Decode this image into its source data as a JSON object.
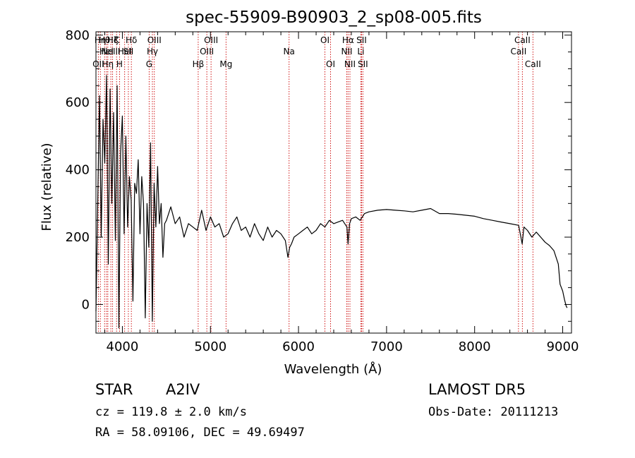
{
  "chart_data": {
    "type": "line",
    "title": "spec-55909-B90903_2_sp08-005.fits",
    "xlabel": "Wavelength (Å)",
    "ylabel": "Flux (relative)",
    "xlim": [
      3700,
      9100
    ],
    "ylim": [
      -85,
      810
    ],
    "xticks": [
      4000,
      5000,
      6000,
      7000,
      8000,
      9000
    ],
    "yticks": [
      0,
      200,
      400,
      600,
      800
    ],
    "grid": false,
    "series": [
      {
        "x": [
          3700,
          3720,
          3740,
          3760,
          3780,
          3800,
          3820,
          3840,
          3860,
          3880,
          3900,
          3920,
          3940,
          3960,
          3980,
          4000,
          4020,
          4040,
          4060,
          4080,
          4100,
          4120,
          4140,
          4160,
          4180,
          4200,
          4220,
          4240,
          4260,
          4280,
          4300,
          4320,
          4340,
          4360,
          4380,
          4400,
          4420,
          4440,
          4460,
          4480,
          4500,
          4550,
          4600,
          4650,
          4700,
          4750,
          4800,
          4850,
          4900,
          4950,
          5000,
          5050,
          5100,
          5150,
          5200,
          5250,
          5300,
          5350,
          5400,
          5450,
          5500,
          5550,
          5600,
          5650,
          5700,
          5750,
          5800,
          5850,
          5880,
          5900,
          5920,
          5950,
          6000,
          6050,
          6100,
          6150,
          6200,
          6250,
          6300,
          6350,
          6400,
          6450,
          6500,
          6550,
          6563,
          6580,
          6600,
          6650,
          6700,
          6750,
          6800,
          6900,
          7000,
          7100,
          7200,
          7300,
          7400,
          7500,
          7600,
          7700,
          7800,
          7900,
          8000,
          8100,
          8200,
          8300,
          8400,
          8500,
          8540,
          8560,
          8600,
          8650,
          8700,
          8750,
          8800,
          8850,
          8900,
          8950,
          8970,
          9000,
          9020,
          9040,
          9050
        ],
        "y": [
          -20,
          300,
          620,
          200,
          550,
          420,
          680,
          120,
          640,
          300,
          570,
          190,
          650,
          -70,
          450,
          560,
          210,
          500,
          230,
          380,
          310,
          10,
          360,
          330,
          430,
          210,
          380,
          300,
          -40,
          300,
          170,
          480,
          -50,
          360,
          230,
          410,
          240,
          300,
          140,
          240,
          250,
          290,
          240,
          260,
          200,
          240,
          230,
          220,
          280,
          220,
          260,
          230,
          240,
          200,
          210,
          240,
          260,
          220,
          230,
          200,
          240,
          210,
          190,
          230,
          200,
          220,
          210,
          190,
          140,
          170,
          180,
          200,
          210,
          220,
          230,
          210,
          220,
          240,
          230,
          250,
          240,
          245,
          250,
          230,
          180,
          240,
          255,
          260,
          250,
          270,
          275,
          280,
          282,
          280,
          278,
          275,
          280,
          285,
          270,
          270,
          268,
          265,
          262,
          255,
          250,
          245,
          240,
          235,
          180,
          230,
          220,
          200,
          215,
          200,
          185,
          175,
          160,
          120,
          60,
          40,
          15,
          -5,
          -10
        ]
      }
    ],
    "lines": [
      {
        "x": 3727,
        "labels": [
          "OII"
        ],
        "rows": [
          2
        ]
      },
      {
        "x": 3750,
        "labels": [
          "Hη"
        ],
        "rows": [
          0
        ]
      },
      {
        "x": 3798,
        "labels": [
          "Hθ"
        ],
        "rows": [
          0
        ]
      },
      {
        "x": 3820,
        "labels": [
          "HeI"
        ],
        "rows": [
          1
        ]
      },
      {
        "x": 3835,
        "labels": [
          "Hη"
        ],
        "rows": [
          2
        ]
      },
      {
        "x": 3869,
        "labels": [
          "NeIII"
        ],
        "rows": [
          1
        ]
      },
      {
        "x": 3889,
        "labels": [
          "Hζ"
        ],
        "rows": [
          0
        ]
      },
      {
        "x": 3934,
        "labels": [
          "K"
        ],
        "rows": [
          0
        ]
      },
      {
        "x": 3968,
        "labels": [
          "H"
        ],
        "rows": [
          2
        ]
      },
      {
        "x": 4026,
        "labels": [
          "HeI"
        ],
        "rows": [
          1
        ]
      },
      {
        "x": 4068,
        "labels": [
          "SII"
        ],
        "rows": [
          1
        ]
      },
      {
        "x": 4102,
        "labels": [
          "Hδ"
        ],
        "rows": [
          0
        ]
      },
      {
        "x": 4304,
        "labels": [
          "G"
        ],
        "rows": [
          2
        ]
      },
      {
        "x": 4341,
        "labels": [
          "Hγ"
        ],
        "rows": [
          1
        ]
      },
      {
        "x": 4363,
        "labels": [
          "OIII"
        ],
        "rows": [
          0
        ]
      },
      {
        "x": 4861,
        "labels": [
          "Hβ"
        ],
        "rows": [
          2
        ]
      },
      {
        "x": 4959,
        "labels": [
          "OIII"
        ],
        "rows": [
          1
        ]
      },
      {
        "x": 5007,
        "labels": [
          "OIII"
        ],
        "rows": [
          0
        ]
      },
      {
        "x": 5177,
        "labels": [
          "Mg"
        ],
        "rows": [
          2
        ]
      },
      {
        "x": 5893,
        "labels": [
          "Na"
        ],
        "rows": [
          1
        ]
      },
      {
        "x": 6300,
        "labels": [
          "OI"
        ],
        "rows": [
          0
        ]
      },
      {
        "x": 6364,
        "labels": [
          "OI"
        ],
        "rows": [
          2
        ]
      },
      {
        "x": 6548,
        "labels": [
          "NII"
        ],
        "rows": [
          1
        ]
      },
      {
        "x": 6563,
        "labels": [
          "Hα"
        ],
        "rows": [
          0
        ]
      },
      {
        "x": 6584,
        "labels": [
          "NII"
        ],
        "rows": [
          2
        ]
      },
      {
        "x": 6708,
        "labels": [
          "Li"
        ],
        "rows": [
          1
        ]
      },
      {
        "x": 6716,
        "labels": [
          "SII"
        ],
        "rows": [
          0
        ]
      },
      {
        "x": 6731,
        "labels": [
          "SII"
        ],
        "rows": [
          2
        ]
      },
      {
        "x": 8498,
        "labels": [
          "CaII"
        ],
        "rows": [
          1
        ]
      },
      {
        "x": 8542,
        "labels": [
          "CaII"
        ],
        "rows": [
          0
        ]
      },
      {
        "x": 8662,
        "labels": [
          "CaII"
        ],
        "rows": [
          2
        ]
      }
    ],
    "colors": {
      "spectrum": "#000000",
      "lines": "#cc0000",
      "axes": "#000000"
    }
  },
  "info": {
    "class": "STAR",
    "subclass": "A2IV",
    "survey": "LAMOST  DR5",
    "cz": "cz = 119.8 ± 2.0 km/s",
    "obsdate": "Obs-Date: 20111213",
    "coords": "RA =  58.09106, DEC =  49.69497"
  }
}
